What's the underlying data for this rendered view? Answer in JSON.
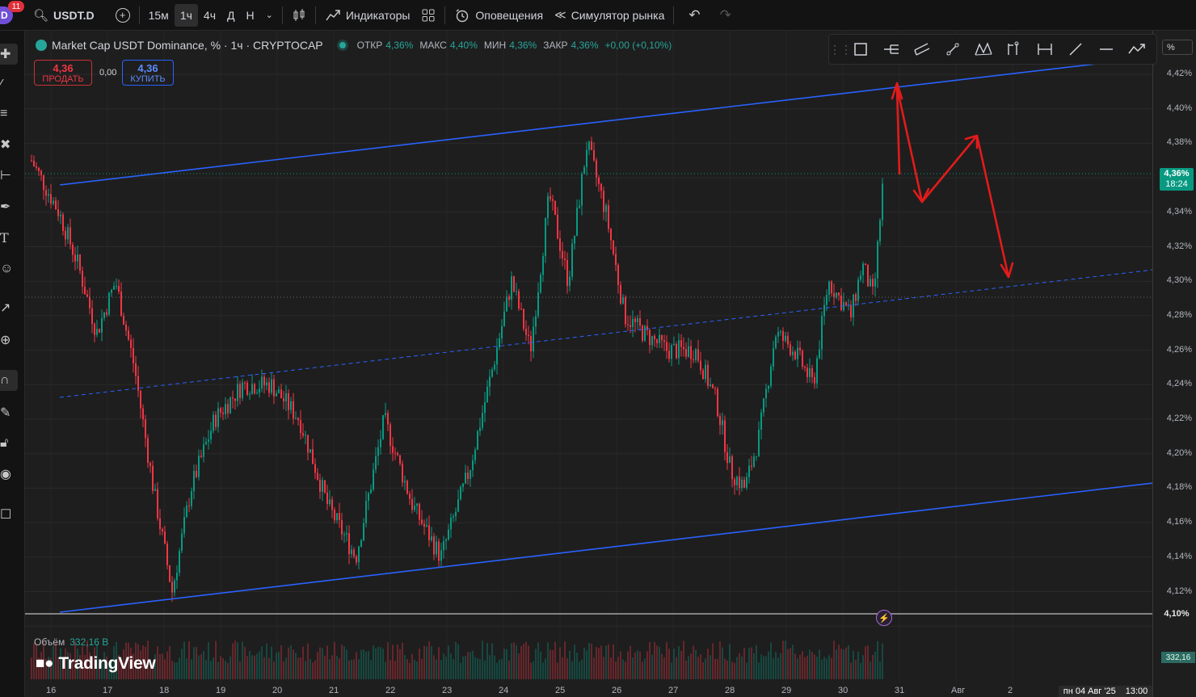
{
  "header": {
    "notifications_count": "11",
    "symbol": "USDT.D",
    "timeframes": [
      "15м",
      "1ч",
      "4ч",
      "Д",
      "Н"
    ],
    "active_timeframe": "1ч",
    "indicators_label": "Индикаторы",
    "alerts_label": "Оповещения",
    "replay_label": "Симулятор рынка"
  },
  "legend": {
    "title": "Market Cap USDT Dominance, % · 1ч · CRYPTOCAP",
    "open_label": "ОТКР",
    "open": "4,36%",
    "high_label": "МАКС",
    "high": "4,40%",
    "low_label": "МИН",
    "low": "4,36%",
    "close_label": "ЗАКР",
    "close": "4,36%",
    "change": "+0,00 (+0,10%)"
  },
  "trade": {
    "sell_price": "4,36",
    "sell_label": "ПРОДАТЬ",
    "spread": "0,00",
    "buy_price": "4,36",
    "buy_label": "КУПИТЬ"
  },
  "price_scale": {
    "unit": "%",
    "current_price": "4,36%",
    "countdown": "18:24",
    "line_price": "4,10%",
    "volume_badge": "332,16"
  },
  "volume": {
    "label": "Объём",
    "value": "332,16 B"
  },
  "logo": "TradingView",
  "time_axis": {
    "cursor_date": "пн 04 Авг '25",
    "cursor_time": "13:00"
  },
  "colors": {
    "up": "#089981",
    "down": "#f23645",
    "trendline": "#2962ff",
    "annotation": "#e21b1b"
  },
  "chart_data": {
    "type": "candlestick",
    "y_axis_ticks": [
      "4,42%",
      "4,40%",
      "4,38%",
      "4,36%",
      "4,34%",
      "4,32%",
      "4,30%",
      "4,28%",
      "4,26%",
      "4,24%",
      "4,22%",
      "4,20%",
      "4,18%",
      "4,16%",
      "4,14%",
      "4,12%",
      "4,10%"
    ],
    "x_axis_ticks": [
      "16",
      "17",
      "18",
      "19",
      "20",
      "21",
      "22",
      "23",
      "24",
      "25",
      "26",
      "27",
      "28",
      "29",
      "30",
      "31",
      "Авг",
      "2"
    ],
    "ylim": [
      4.1,
      4.43
    ],
    "keypoints": [
      {
        "x": "16",
        "y": 4.37
      },
      {
        "x": "16",
        "y": 4.34
      },
      {
        "x": "16",
        "y": 4.31
      },
      {
        "x": "17",
        "y": 4.27
      },
      {
        "x": "17",
        "y": 4.3
      },
      {
        "x": "17",
        "y": 4.25
      },
      {
        "x": "18",
        "y": 4.18
      },
      {
        "x": "18",
        "y": 4.12
      },
      {
        "x": "18",
        "y": 4.18
      },
      {
        "x": "19",
        "y": 4.22
      },
      {
        "x": "19",
        "y": 4.24
      },
      {
        "x": "20",
        "y": 4.24
      },
      {
        "x": "20",
        "y": 4.22
      },
      {
        "x": "21",
        "y": 4.17
      },
      {
        "x": "21",
        "y": 4.14
      },
      {
        "x": "22",
        "y": 4.22
      },
      {
        "x": "22",
        "y": 4.17
      },
      {
        "x": "23",
        "y": 4.14
      },
      {
        "x": "23",
        "y": 4.19
      },
      {
        "x": "24",
        "y": 4.25
      },
      {
        "x": "24",
        "y": 4.3
      },
      {
        "x": "24",
        "y": 4.26
      },
      {
        "x": "25",
        "y": 4.35
      },
      {
        "x": "25",
        "y": 4.3
      },
      {
        "x": "25",
        "y": 4.38
      },
      {
        "x": "26",
        "y": 4.34
      },
      {
        "x": "26",
        "y": 4.28
      },
      {
        "x": "26",
        "y": 4.27
      },
      {
        "x": "27",
        "y": 4.26
      },
      {
        "x": "27",
        "y": 4.26
      },
      {
        "x": "28",
        "y": 4.23
      },
      {
        "x": "28",
        "y": 4.19
      },
      {
        "x": "28",
        "y": 4.18
      },
      {
        "x": "28",
        "y": 4.21
      },
      {
        "x": "29",
        "y": 4.27
      },
      {
        "x": "29",
        "y": 4.26
      },
      {
        "x": "29",
        "y": 4.24
      },
      {
        "x": "30",
        "y": 4.3
      },
      {
        "x": "30",
        "y": 4.29
      },
      {
        "x": "30",
        "y": 4.28
      },
      {
        "x": "30",
        "y": 4.31
      },
      {
        "x": "30",
        "y": 4.29
      },
      {
        "x": "31",
        "y": 4.36
      }
    ]
  }
}
